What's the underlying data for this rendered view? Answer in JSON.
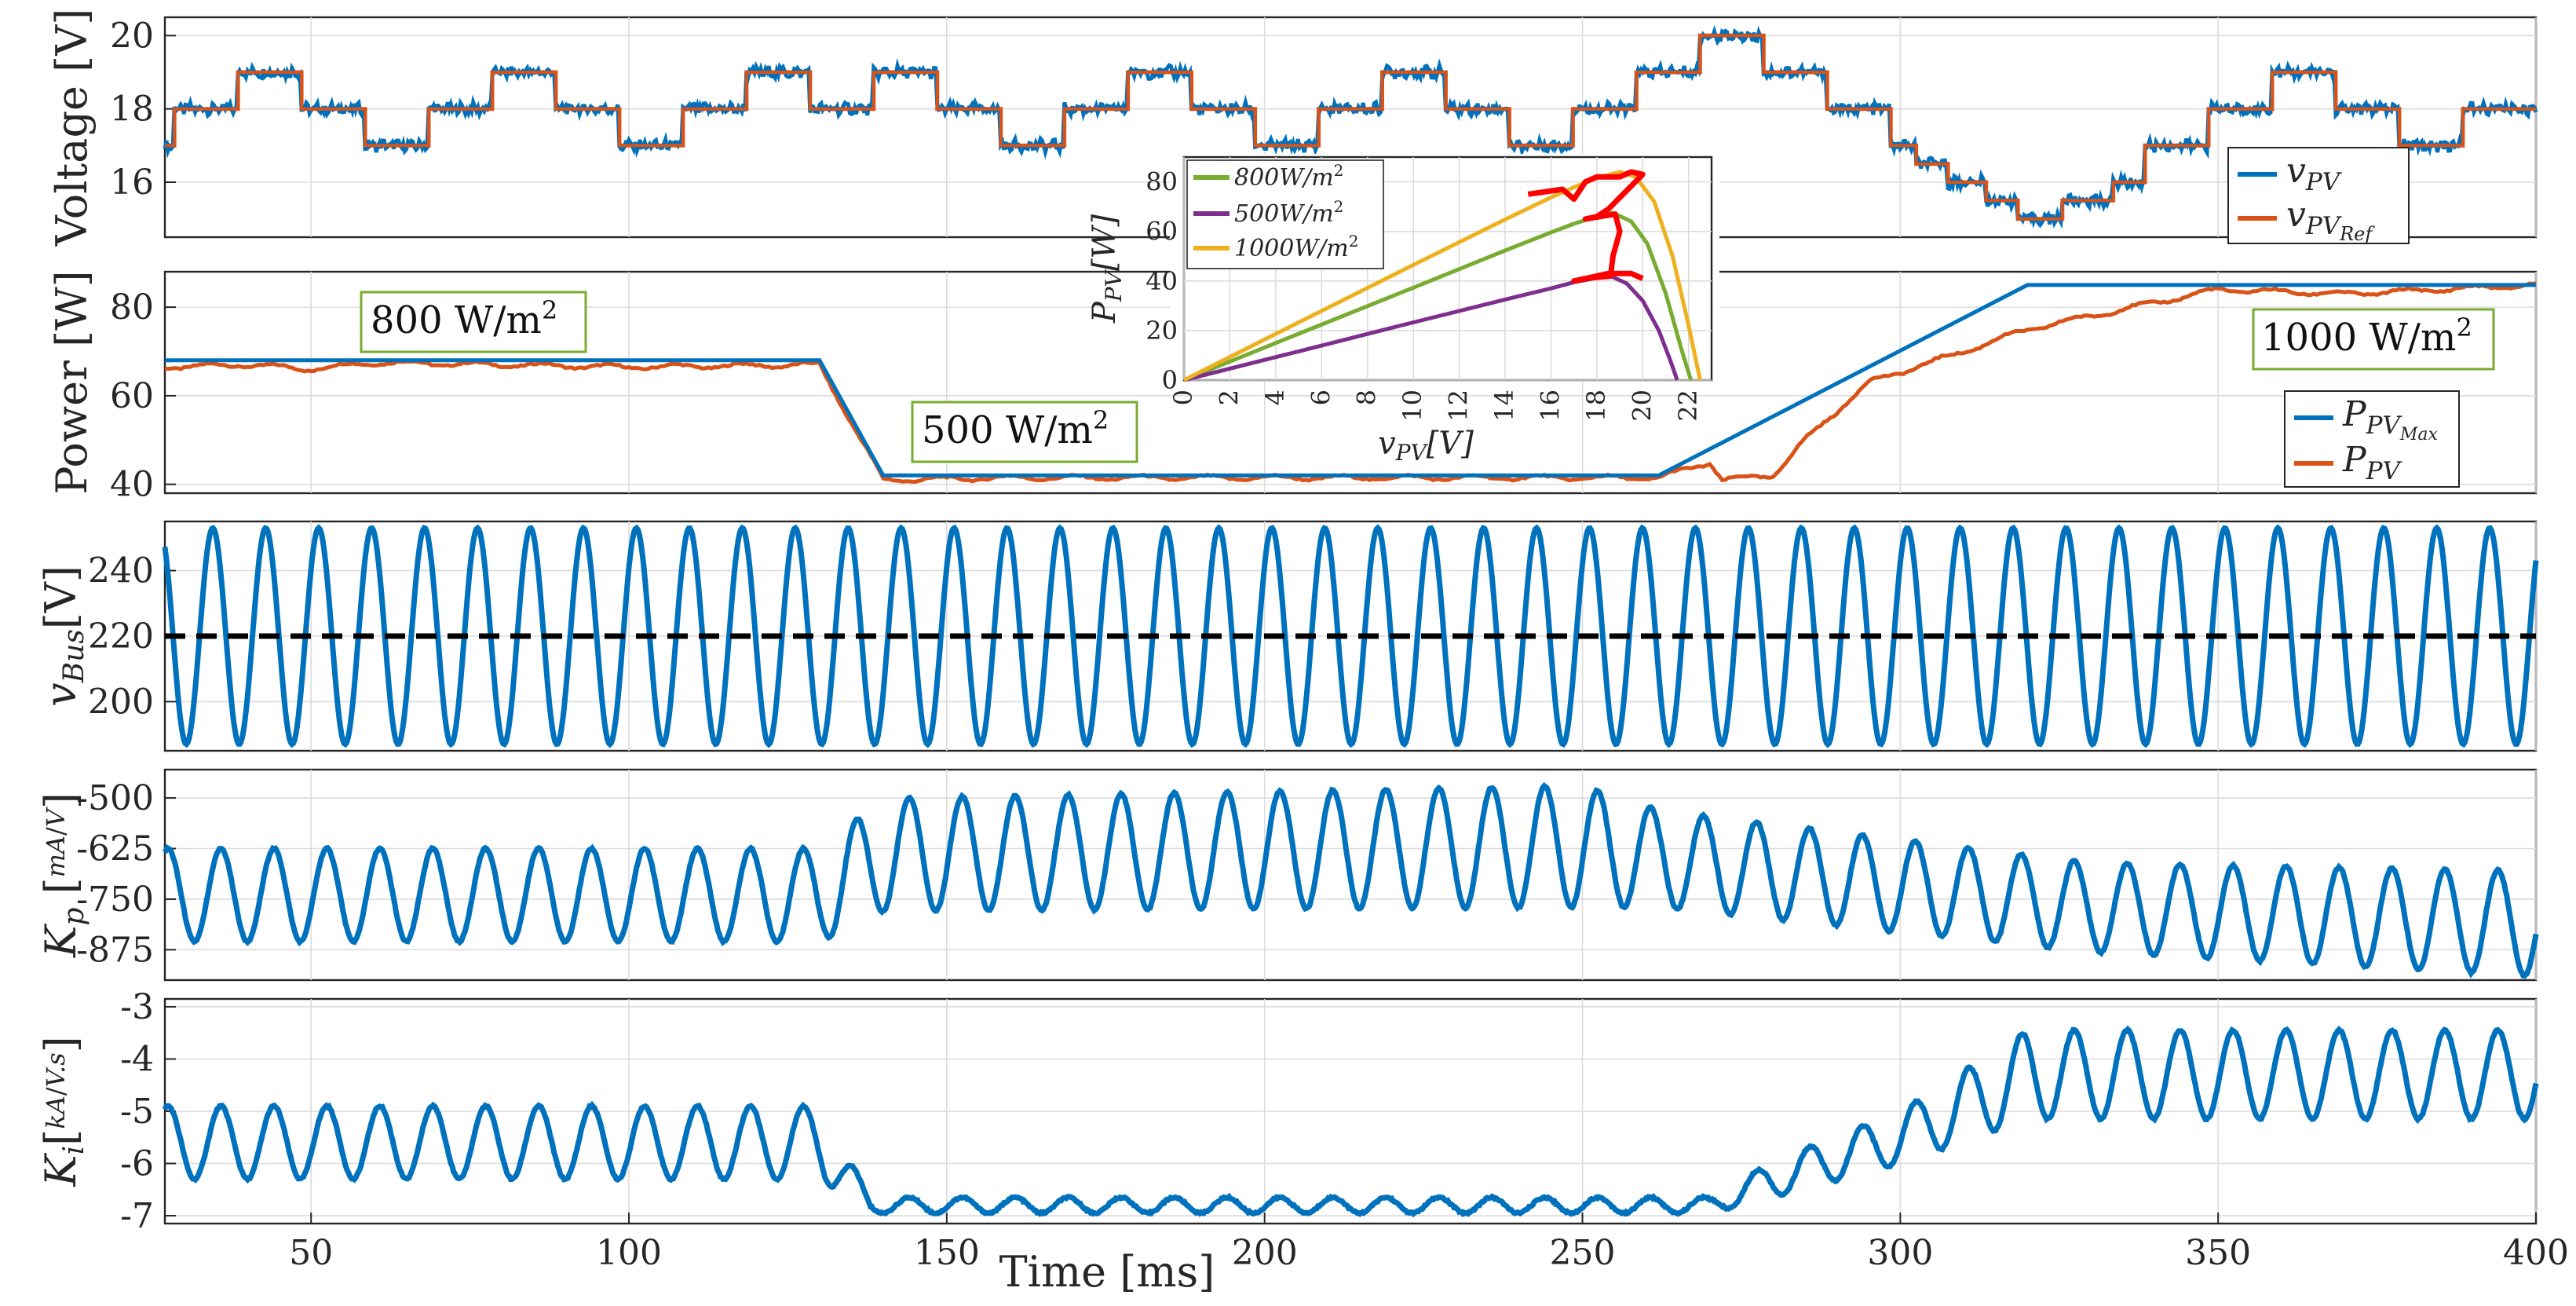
{
  "chart_data": [
    {
      "type": "line",
      "panel": "voltage",
      "ylabel": "Voltage [V]",
      "ylim": [
        14.5,
        20.5
      ],
      "yticks": [
        16,
        18,
        20
      ],
      "xlim": [
        27,
        400
      ],
      "series": [
        {
          "name": "v_PV",
          "color": "#0072BD",
          "legend_main": "v",
          "legend_sub": "PV"
        },
        {
          "name": "v_PV_Ref",
          "color": "#D95319",
          "legend_main": "v",
          "legend_sub": "PV",
          "legend_subsub": "Ref"
        }
      ],
      "steps": [
        [
          27,
          17
        ],
        [
          28.5,
          18
        ],
        [
          38.5,
          19
        ],
        [
          48.5,
          18
        ],
        [
          58.5,
          17
        ],
        [
          68.5,
          18
        ],
        [
          78.5,
          19
        ],
        [
          88.5,
          18
        ],
        [
          98.5,
          17
        ],
        [
          108.5,
          18
        ],
        [
          118.5,
          19
        ],
        [
          128.5,
          18
        ],
        [
          138.5,
          19
        ],
        [
          148.5,
          18
        ],
        [
          158.5,
          17
        ],
        [
          168.5,
          18
        ],
        [
          178.5,
          19
        ],
        [
          188.5,
          18
        ],
        [
          198.5,
          17
        ],
        [
          208.5,
          18
        ],
        [
          218.5,
          19
        ],
        [
          228.5,
          18
        ],
        [
          238.5,
          17
        ],
        [
          248.5,
          18
        ],
        [
          258.5,
          19
        ],
        [
          268.5,
          20
        ],
        [
          278.5,
          19
        ],
        [
          288.5,
          18
        ],
        [
          298.5,
          17
        ],
        [
          302.5,
          16.5
        ],
        [
          307.5,
          16
        ],
        [
          313.5,
          15.5
        ],
        [
          318.5,
          15
        ],
        [
          325.5,
          15.5
        ],
        [
          333.5,
          16
        ],
        [
          338.5,
          17
        ],
        [
          348.5,
          18
        ],
        [
          358.5,
          19
        ],
        [
          368.5,
          18
        ],
        [
          378.5,
          17
        ],
        [
          388.5,
          18
        ],
        [
          400,
          18
        ]
      ]
    },
    {
      "type": "line",
      "panel": "power",
      "ylabel": "Power [W]",
      "ylim": [
        38,
        88
      ],
      "yticks": [
        40,
        60,
        80
      ],
      "xlim": [
        27,
        400
      ],
      "series": [
        {
          "name": "P_PV_Max",
          "color": "#0072BD",
          "legend_main": "P",
          "legend_sub": "PV",
          "legend_subsub": "Max",
          "points": [
            [
              27,
              68
            ],
            [
              130,
              68
            ],
            [
              140,
              42
            ],
            [
              262,
              42
            ],
            [
              320,
              85
            ],
            [
              400,
              85
            ]
          ]
        },
        {
          "name": "P_PV",
          "color": "#D95319",
          "legend_main": "P",
          "legend_sub": "PV",
          "points": [
            [
              27,
              66.5
            ],
            [
              40,
              67
            ],
            [
              50,
              66
            ],
            [
              60,
              67.5
            ],
            [
              80,
              67
            ],
            [
              100,
              66.5
            ],
            [
              130,
              67
            ],
            [
              140,
              41
            ],
            [
              160,
              41.5
            ],
            [
              200,
              41.5
            ],
            [
              250,
              41.5
            ],
            [
              262,
              41.5
            ],
            [
              270,
              45
            ],
            [
              272,
              41
            ],
            [
              280,
              42
            ],
            [
              285,
              50
            ],
            [
              295,
              63
            ],
            [
              310,
              70
            ],
            [
              320,
              75
            ],
            [
              330,
              78
            ],
            [
              350,
              84
            ],
            [
              370,
              83
            ],
            [
              400,
              85
            ]
          ]
        }
      ],
      "annotations": [
        "800 W/m",
        "500 W/m",
        "1000 W/m"
      ],
      "annotation_sup": "2"
    },
    {
      "type": "line",
      "panel": "bus",
      "ylabel_main": "v",
      "ylabel_sub": "Bus",
      "ylabel_unit": "[V]",
      "ylim": [
        185,
        255
      ],
      "yticks": [
        200,
        220,
        240
      ],
      "xlim": [
        27,
        400
      ],
      "series": [
        {
          "name": "v_Bus",
          "color": "#0072BD",
          "mean": 220,
          "amplitude": 33,
          "period_ms": 8.33
        }
      ],
      "reference": {
        "name": "v_Bus_Ref",
        "value": 220,
        "color": "#000000"
      }
    },
    {
      "type": "line",
      "panel": "kp",
      "ylabel_main": "K",
      "ylabel_sub": "p",
      "ylabel_unit_num": "mA",
      "ylabel_unit_den": "V",
      "ylim": [
        -950,
        -430
      ],
      "yticks": [
        -500,
        -625,
        -750,
        -875
      ],
      "ytick_labels": [
        "-500",
        "-625",
        "-750",
        "-875"
      ],
      "xlim": [
        27,
        400
      ],
      "series": [
        {
          "name": "K_p",
          "color": "#0072BD",
          "period_ms": 8.33,
          "center": [
            [
              27,
              -740
            ],
            [
              130,
              -740
            ],
            [
              140,
              -640
            ],
            [
              250,
              -620
            ],
            [
              262,
              -650
            ],
            [
              330,
              -770
            ],
            [
              400,
              -810
            ]
          ],
          "amplitude": [
            [
              27,
              115
            ],
            [
              130,
              115
            ],
            [
              140,
              140
            ],
            [
              250,
              150
            ],
            [
              262,
              120
            ],
            [
              330,
              110
            ],
            [
              400,
              130
            ]
          ]
        }
      ]
    },
    {
      "type": "line",
      "panel": "ki",
      "ylabel_main": "K",
      "ylabel_sub": "i",
      "ylabel_unit_num": "kA",
      "ylabel_unit_den": "V.s",
      "ylim": [
        -7.15,
        -2.85
      ],
      "yticks": [
        -3,
        -4,
        -5,
        -6,
        -7
      ],
      "ytick_labels": [
        "-3",
        "-4",
        "-5",
        "-6",
        "-7"
      ],
      "xlim": [
        27,
        400
      ],
      "xlabel": "Time [ms]",
      "xticks": [
        50,
        100,
        150,
        200,
        250,
        300,
        350,
        400
      ],
      "xtick_labels": [
        "50",
        "100",
        "150",
        "200",
        "250",
        "300",
        "350",
        "400"
      ],
      "series": [
        {
          "name": "K_i",
          "color": "#0072BD",
          "period_ms": 8.33,
          "center": [
            [
              27,
              -5.6
            ],
            [
              130,
              -5.6
            ],
            [
              138,
              -6.8
            ],
            [
              270,
              -6.8
            ],
            [
              280,
              -6.3
            ],
            [
              300,
              -5.5
            ],
            [
              320,
              -4.3
            ],
            [
              400,
              -4.3
            ]
          ],
          "amplitude": [
            [
              27,
              0.7
            ],
            [
              130,
              0.7
            ],
            [
              138,
              0.15
            ],
            [
              270,
              0.15
            ],
            [
              280,
              0.35
            ],
            [
              300,
              0.5
            ],
            [
              320,
              0.85
            ],
            [
              400,
              0.85
            ]
          ]
        }
      ]
    },
    {
      "type": "line",
      "panel": "inset",
      "xlabel_main": "v",
      "xlabel_sub": "PV",
      "xlabel_unit": "[V]",
      "ylabel_main": "P",
      "ylabel_sub": "PV",
      "ylabel_unit": "[W]",
      "xlim": [
        0,
        23
      ],
      "ylim": [
        0,
        90
      ],
      "xticks": [
        0,
        2,
        4,
        6,
        8,
        10,
        12,
        14,
        16,
        18,
        20,
        22
      ],
      "yticks": [
        0,
        20,
        40,
        60,
        80
      ],
      "series": [
        {
          "name": "800W/m",
          "sup": "2",
          "color": "#77AC30",
          "points": [
            [
              0,
              0
            ],
            [
              5,
              18.7
            ],
            [
              10,
              37.3
            ],
            [
              14,
              52.3
            ],
            [
              16,
              59.6
            ],
            [
              17,
              63.1
            ],
            [
              18,
              66
            ],
            [
              18.7,
              67.5
            ],
            [
              19.5,
              64
            ],
            [
              20.2,
              55
            ],
            [
              21,
              35
            ],
            [
              21.7,
              12
            ],
            [
              22.1,
              0
            ]
          ]
        },
        {
          "name": "500W/m",
          "sup": "2",
          "color": "#7E2F8E",
          "points": [
            [
              0,
              0
            ],
            [
              5,
              11.6
            ],
            [
              10,
              23.3
            ],
            [
              14,
              32.5
            ],
            [
              16,
              37
            ],
            [
              17,
              39.5
            ],
            [
              18,
              41.3
            ],
            [
              18.6,
              42
            ],
            [
              19.3,
              39
            ],
            [
              20,
              32
            ],
            [
              20.7,
              20
            ],
            [
              21.2,
              8
            ],
            [
              21.5,
              0
            ]
          ]
        },
        {
          "name": "1000W/m",
          "sup": "2",
          "color": "#EDB120",
          "points": [
            [
              0,
              0
            ],
            [
              5,
              23.3
            ],
            [
              10,
              46.5
            ],
            [
              14,
              64.8
            ],
            [
              16,
              73.7
            ],
            [
              17,
              77.8
            ],
            [
              18,
              81.5
            ],
            [
              19,
              84
            ],
            [
              19.7,
              82
            ],
            [
              20.5,
              72
            ],
            [
              21.3,
              50
            ],
            [
              22,
              22
            ],
            [
              22.5,
              0
            ]
          ]
        },
        {
          "name": "operating_trace",
          "color": "#FF0000",
          "points": [
            [
              15,
              75
            ],
            [
              16.5,
              77
            ],
            [
              17,
              73
            ],
            [
              17.5,
              80
            ],
            [
              18,
              82
            ],
            [
              19,
              82
            ],
            [
              19.5,
              84
            ],
            [
              20,
              83
            ],
            [
              18.5,
              69
            ],
            [
              18,
              66
            ],
            [
              17.5,
              65
            ],
            [
              18.8,
              67
            ],
            [
              19,
              60
            ],
            [
              18.7,
              50
            ],
            [
              18.6,
              42
            ],
            [
              17.5,
              41
            ],
            [
              17,
              40
            ],
            [
              18.5,
              43
            ],
            [
              19.5,
              43
            ],
            [
              20,
              41
            ]
          ]
        }
      ]
    }
  ]
}
